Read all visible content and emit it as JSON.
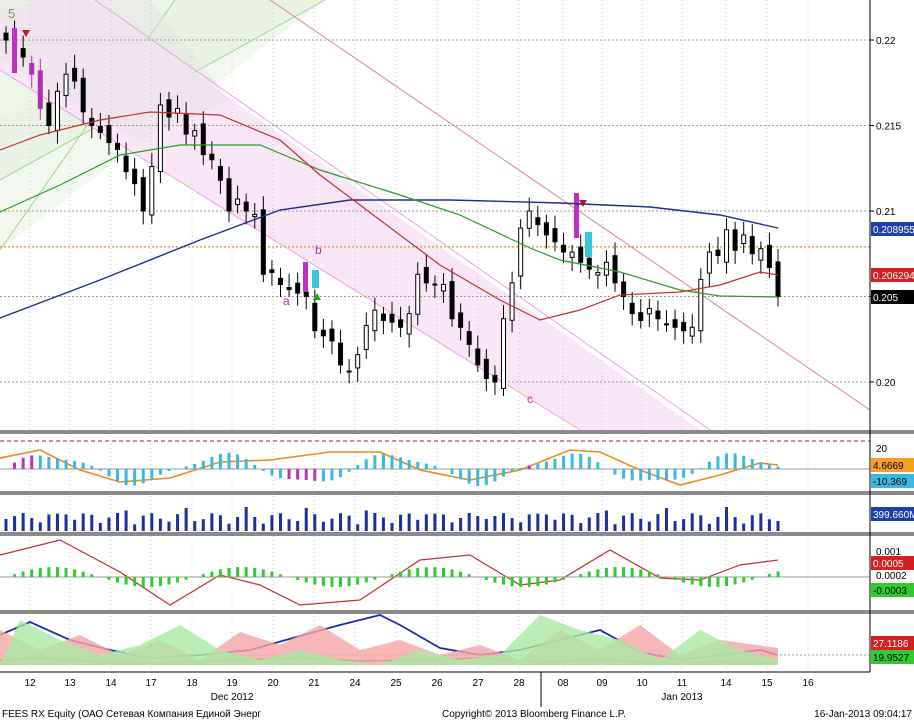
{
  "chart_data": {
    "type": "candlestick",
    "security": "FEES RX Equity (ОАО Сетевая Компания Единой Энерг",
    "copyright": "Copyright© 2013 Bloomberg Finance L.P.",
    "timestamp": "16-Jan-2013 09:04:17",
    "corner_label": "5",
    "x_days": [
      "12",
      "13",
      "14",
      "17",
      "18",
      "19",
      "20",
      "21",
      "24",
      "25",
      "26",
      "27",
      "28",
      "08",
      "09",
      "10",
      "11",
      "14",
      "15",
      "16"
    ],
    "month_labels": [
      {
        "label": "Dec 2012",
        "day": "19"
      },
      {
        "label": "Jan 2013",
        "day": "11"
      }
    ],
    "price_panel": {
      "yticks": [
        0.2,
        0.205,
        0.21,
        0.215,
        0.22
      ],
      "ytick_labels": [
        "0.20",
        "0.205",
        "0.21",
        "0.215",
        "0.22"
      ],
      "ylim": [
        0.1985,
        0.2225
      ],
      "reference_line": 0.2079,
      "badges": [
        {
          "text": "0.208955",
          "value": 0.208955,
          "bg": "#1c3faa",
          "fg": "#ffffff"
        },
        {
          "text": "0.206294",
          "value": 0.206294,
          "bg": "#d42020",
          "fg": "#ffffff"
        },
        {
          "text": "0.205",
          "value": 0.205,
          "bg": "#000000",
          "fg": "#ffffff"
        }
      ],
      "wave_labels": [
        {
          "text": "a",
          "day_index": 6.7,
          "value": 0.2045,
          "color": "#b030b0"
        },
        {
          "text": "b",
          "day_index": 7.25,
          "value": 0.2077,
          "color": "#b030b0"
        },
        {
          "text": "c",
          "day_index": 12.8,
          "value": 0.1992,
          "color": "#b030b0"
        }
      ],
      "close": [
        0.22,
        0.2196,
        0.219,
        0.218,
        0.216,
        0.215,
        0.217,
        0.218,
        0.2176,
        0.2158,
        0.215,
        0.2146,
        0.214,
        0.2136,
        0.2123,
        0.2116,
        0.21,
        0.2126,
        0.2162,
        0.2155,
        0.216,
        0.2145,
        0.2147,
        0.2133,
        0.213,
        0.2118,
        0.21,
        0.2107,
        0.21,
        0.2098,
        0.2063,
        0.2064,
        0.2057,
        0.2054,
        0.2052,
        0.205,
        0.203,
        0.2027,
        0.2024,
        0.201,
        0.2006,
        0.2016,
        0.2033,
        0.2042,
        0.2036,
        0.2035,
        0.2032,
        0.204,
        0.2063,
        0.2058,
        0.2057,
        0.2057,
        0.2037,
        0.2032,
        0.2022,
        0.201,
        0.2002,
        0.2,
        0.2037,
        0.2058,
        0.209,
        0.21,
        0.2092,
        0.2086,
        0.2082,
        0.2076,
        0.2076,
        0.207,
        0.2066,
        0.2064,
        0.207,
        0.2058,
        0.205,
        0.204,
        0.2036,
        0.2043,
        0.2037,
        0.2034,
        0.2032,
        0.203,
        0.2032,
        0.206,
        0.2076,
        0.2074,
        0.2089,
        0.2077,
        0.2086,
        0.2075,
        0.2078,
        0.2067,
        0.205
      ]
    },
    "indicator_panels": [
      {
        "name": "oscillator",
        "yticks": [
          20
        ],
        "ytick_labels": [
          "20"
        ],
        "badges": [
          {
            "text": "4.6669",
            "bg": "#f5a020",
            "fg": "#000000"
          },
          {
            "text": "-10.369",
            "bg": "#39b8e0",
            "fg": "#000000"
          }
        ],
        "upper_band": 20
      },
      {
        "name": "volume",
        "badges": [
          {
            "text": "399.660M",
            "bg": "#1c3faa",
            "fg": "#ffffff"
          }
        ]
      },
      {
        "name": "macd",
        "yticks": [
          0.001,
          0.0002
        ],
        "ytick_labels": [
          "0.001",
          "0.0002"
        ],
        "badges": [
          {
            "text": "0.0005",
            "bg": "#d42020",
            "fg": "#ffffff"
          },
          {
            "text": "-0.0003",
            "bg": "#2fcc2f",
            "fg": "#000000"
          }
        ]
      },
      {
        "name": "directional",
        "badges": [
          {
            "text": "27.1186",
            "bg": "#d42020",
            "fg": "#ffffff"
          },
          {
            "text": "19.9527",
            "bg": "#2fcc2f",
            "fg": "#000000"
          }
        ]
      }
    ]
  }
}
